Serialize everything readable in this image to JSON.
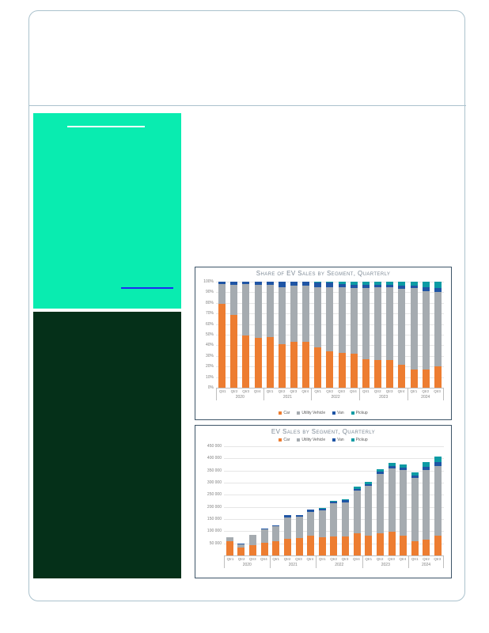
{
  "palette": {
    "page_border": "#ABC2CD",
    "cover_green": "#09ECB0",
    "cover_dark_green": "#053019",
    "white_rule": "#FFFFFF",
    "blue_rule": "#1B2CF2",
    "chart_frame": "#3E5568",
    "car_orange": "#ED7D31",
    "utility_gray": "#A5ABB0",
    "van_blue": "#1F55A5",
    "pickup_teal": "#0D9BA4"
  },
  "chart_data": [
    {
      "type": "bar",
      "stacking": "percent",
      "title": "Share of EV Sales by Segment, Quarterly",
      "categories": [
        "Qtr1",
        "Qtr2",
        "Qtr3",
        "Qtr4",
        "Qtr1",
        "Qtr2",
        "Qtr3",
        "Qtr4",
        "Qtr1",
        "Qtr2",
        "Qtr3",
        "Qtr4",
        "Qtr1",
        "Qtr2",
        "Qtr3",
        "Qtr4",
        "Qtr1",
        "Qtr2",
        "Qtr3"
      ],
      "year_groups": [
        {
          "label": "2020",
          "count": 4
        },
        {
          "label": "2021",
          "count": 4
        },
        {
          "label": "2022",
          "count": 4
        },
        {
          "label": "2023",
          "count": 4
        },
        {
          "label": "2024",
          "count": 3
        }
      ],
      "series": [
        {
          "name": "Car",
          "color": "#ED7D31",
          "values": [
            79,
            69,
            49,
            47,
            48,
            41,
            43,
            43,
            38,
            34,
            33,
            32,
            27,
            26,
            26,
            22,
            17,
            17,
            20
          ]
        },
        {
          "name": "Utility Vehicle",
          "color": "#A5ABB0",
          "values": [
            19,
            28,
            49,
            50,
            49,
            54,
            53,
            53,
            57,
            61,
            62,
            62,
            67,
            69,
            69,
            71,
            77,
            74,
            70
          ]
        },
        {
          "name": "Van",
          "color": "#1F55A5",
          "values": [
            2,
            3,
            2,
            3,
            3,
            5,
            4,
            4,
            4,
            4,
            3,
            3,
            3,
            2,
            2,
            3,
            2,
            4,
            4
          ]
        },
        {
          "name": "Pickup",
          "color": "#0D9BA4",
          "values": [
            0,
            0,
            0,
            0,
            0,
            0,
            0,
            0,
            1,
            1,
            2,
            3,
            3,
            3,
            3,
            4,
            4,
            5,
            6
          ]
        }
      ],
      "unit": "percent of quarterly EV sales",
      "ylim": [
        0,
        100
      ],
      "yticks": [
        {
          "value": 100,
          "label": "100%"
        },
        {
          "value": 90,
          "label": "90%"
        },
        {
          "value": 80,
          "label": "80%"
        },
        {
          "value": 70,
          "label": "70%"
        },
        {
          "value": 60,
          "label": "60%"
        },
        {
          "value": 50,
          "label": "50%"
        },
        {
          "value": 40,
          "label": "40%"
        },
        {
          "value": 30,
          "label": "30%"
        },
        {
          "value": 20,
          "label": "20%"
        },
        {
          "value": 10,
          "label": "10%"
        },
        {
          "value": 0,
          "label": "0%"
        }
      ],
      "grid": true,
      "legend_position": "bottom"
    },
    {
      "type": "bar",
      "stacking": "stacked",
      "title": "EV Sales by Segment, Quarterly",
      "categories": [
        "Qtr1",
        "Qtr2",
        "Qtr3",
        "Qtr4",
        "Qtr1",
        "Qtr2",
        "Qtr3",
        "Qtr4",
        "Qtr1",
        "Qtr2",
        "Qtr3",
        "Qtr4",
        "Qtr1",
        "Qtr2",
        "Qtr3",
        "Qtr4",
        "Qtr1",
        "Qtr2",
        "Qtr3"
      ],
      "year_groups": [
        {
          "label": "2020",
          "count": 4
        },
        {
          "label": "2021",
          "count": 4
        },
        {
          "label": "2022",
          "count": 4
        },
        {
          "label": "2023",
          "count": 4
        },
        {
          "label": "2024",
          "count": 3
        }
      ],
      "series": [
        {
          "name": "Car",
          "color": "#ED7D31",
          "values": [
            60000,
            33000,
            42000,
            52000,
            60000,
            68000,
            72000,
            80000,
            75000,
            77000,
            77000,
            90000,
            82000,
            92000,
            98000,
            83000,
            58000,
            65000,
            82000
          ]
        },
        {
          "name": "Utility Vehicle",
          "color": "#A5ABB0",
          "values": [
            14000,
            13000,
            42000,
            55000,
            61000,
            90000,
            88000,
            100000,
            110000,
            138000,
            142000,
            176000,
            205000,
            245000,
            262000,
            268000,
            262000,
            286000,
            288000
          ]
        },
        {
          "name": "Van",
          "color": "#1F55A5",
          "values": [
            1500,
            1500,
            2000,
            3000,
            4000,
            8000,
            7000,
            8000,
            8000,
            8000,
            8000,
            9000,
            8000,
            8000,
            10000,
            11000,
            8000,
            13000,
            14000
          ]
        },
        {
          "name": "Pickup",
          "color": "#0D9BA4",
          "values": [
            0,
            0,
            0,
            0,
            0,
            0,
            0,
            0,
            2000,
            3000,
            4000,
            9000,
            9000,
            10000,
            10000,
            13000,
            14000,
            21000,
            24000
          ]
        }
      ],
      "unit": "vehicles",
      "ylim": [
        0,
        450000
      ],
      "yticks": [
        {
          "value": 450000,
          "label": "450 000"
        },
        {
          "value": 400000,
          "label": "400 000"
        },
        {
          "value": 350000,
          "label": "350 000"
        },
        {
          "value": 300000,
          "label": "300 000"
        },
        {
          "value": 250000,
          "label": "250 000"
        },
        {
          "value": 200000,
          "label": "200 000"
        },
        {
          "value": 150000,
          "label": "150 000"
        },
        {
          "value": 100000,
          "label": "100 000"
        },
        {
          "value": 50000,
          "label": "50 000"
        }
      ],
      "grid": true,
      "legend_position": "top"
    }
  ]
}
